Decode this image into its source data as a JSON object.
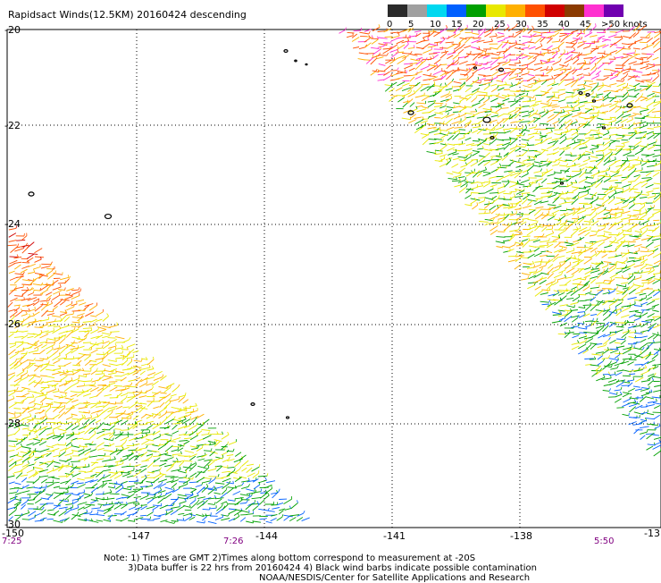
{
  "title": "Rapidsact Winds(12.5KM) 20160424 descending",
  "colorbar": {
    "colors": [
      "#2a2a2a",
      "#a0a0a0",
      "#00d8f0",
      "#0060ff",
      "#00a000",
      "#e8e800",
      "#ffb000",
      "#ff5000",
      "#d00000",
      "#8b3a00",
      "#ff30d0",
      "#7000b0"
    ],
    "ticks": [
      "0",
      "5",
      "10",
      "15",
      "20",
      "25",
      "30",
      "35",
      "40",
      "45",
      ">50 knots"
    ]
  },
  "map": {
    "lat_labels": [
      "-20",
      "-22",
      "-24",
      "-26",
      "-28",
      "-30"
    ],
    "lon_labels": [
      "-150",
      "-147",
      "-144",
      "-141",
      "-138",
      "-13"
    ],
    "time_labels": [
      "7:25",
      "7:26",
      "5:50"
    ]
  },
  "notes": {
    "line1": "Note: 1) Times are GMT 2)Times along bottom correspond to measurement at -20S",
    "line2": "3)Data buffer is 22 hrs from 20160424 4) Black wind barbs indicate possible contamination",
    "line3": "NOAA/NESDIS/Center for Satellite Applications and Research"
  }
}
